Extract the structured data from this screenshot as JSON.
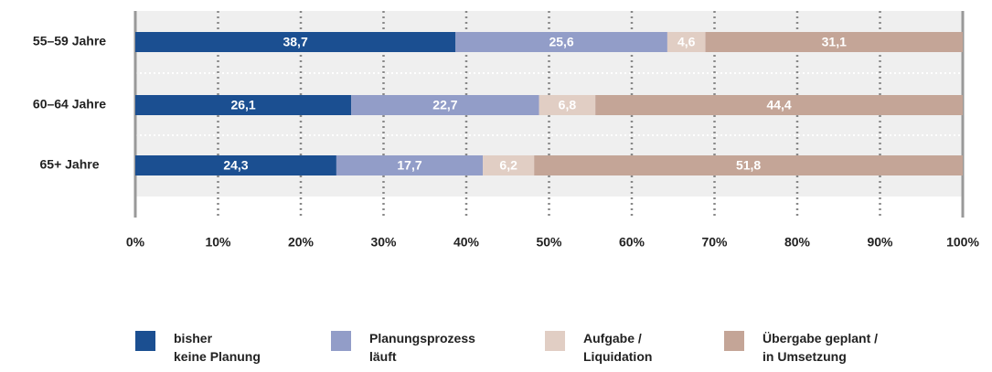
{
  "chart_data": {
    "type": "stacked-bar-horizontal",
    "categories": [
      "55–59 Jahre",
      "60–64 Jahre",
      "65+ Jahre"
    ],
    "series": [
      {
        "name": "bisher\nkeine Planung",
        "color": "#1b4f91",
        "values": [
          38.7,
          26.1,
          24.3
        ],
        "value_labels": [
          "38,7",
          "26,1",
          "24,3"
        ]
      },
      {
        "name": "Planungsprozess\nläuft",
        "color": "#929dc8",
        "values": [
          25.6,
          22.7,
          17.7
        ],
        "value_labels": [
          "25,6",
          "22,7",
          "17,7"
        ]
      },
      {
        "name": "Aufgabe /\nLiquidation",
        "color": "#e1cec4",
        "values": [
          4.6,
          6.8,
          6.2
        ],
        "value_labels": [
          "4,6",
          "6,8",
          "6,2"
        ]
      },
      {
        "name": "Übergabe geplant /\nin Umsetzung",
        "color": "#c4a597",
        "values": [
          31.1,
          44.4,
          51.8
        ],
        "value_labels": [
          "31,1",
          "44,4",
          "51,8"
        ]
      }
    ],
    "xlim": [
      0,
      100
    ],
    "xticks": [
      {
        "value": 0,
        "label": "0%"
      },
      {
        "value": 10,
        "label": "10%"
      },
      {
        "value": 20,
        "label": "20%"
      },
      {
        "value": 30,
        "label": "30%"
      },
      {
        "value": 40,
        "label": "40%"
      },
      {
        "value": 50,
        "label": "50%"
      },
      {
        "value": 60,
        "label": "60%"
      },
      {
        "value": 70,
        "label": "70%"
      },
      {
        "value": 80,
        "label": "80%"
      },
      {
        "value": 90,
        "label": "90%"
      },
      {
        "value": 100,
        "label": "100%"
      }
    ],
    "grid": true,
    "legend": "bottom"
  }
}
